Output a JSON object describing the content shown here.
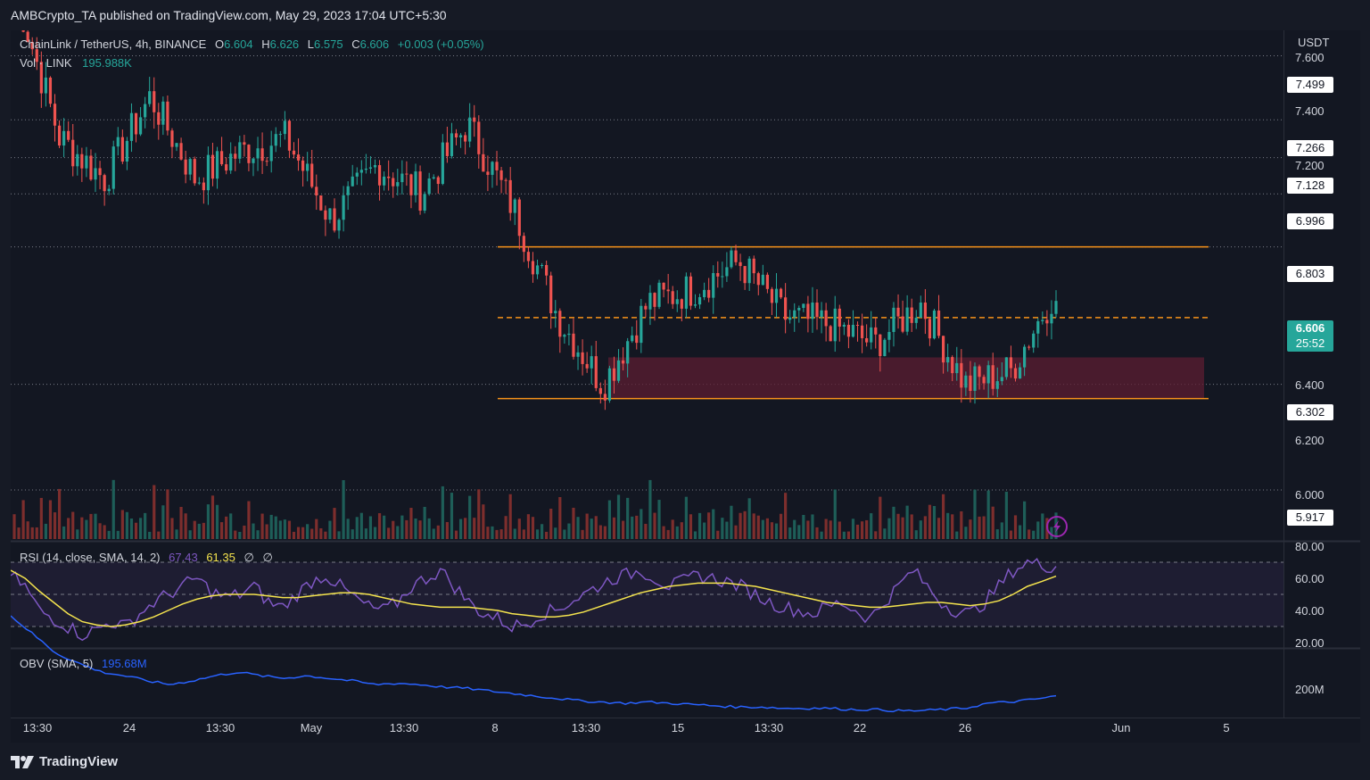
{
  "publisher": "AMBCrypto_TA published on TradingView.com, May 29, 2023 17:04 UTC+5:30",
  "symbol": {
    "name": "ChainLink / TetherUS, 4h, BINANCE",
    "o_label": "O",
    "o": "6.604",
    "h_label": "H",
    "h": "6.626",
    "l_label": "L",
    "l": "6.575",
    "c_label": "C",
    "c": "6.606",
    "change": "+0.003 (+0.05%)"
  },
  "volume": {
    "label": "Vol · LINK",
    "value": "195.988K"
  },
  "rsi": {
    "label": "RSI (14, close, SMA, 14, 2)",
    "value": "67.43",
    "sma": "61.35",
    "extra1": "∅",
    "extra2": "∅"
  },
  "obv": {
    "label": "OBV (SMA, 5)",
    "value": "195.68M"
  },
  "currency": "USDT",
  "current_price": {
    "price": "6.606",
    "countdown": "25:52"
  },
  "brand": "TradingView",
  "colors": {
    "up": "#26a69a",
    "down": "#ef5350",
    "zone": "#f7931a",
    "rsi": "#7e57c2",
    "rsi_sma": "#f5e44e",
    "obv": "#2962ff"
  },
  "chart_data": [
    {
      "type": "candlestick",
      "title": "ChainLink / TetherUS, 4h, BINANCE",
      "ylabel": "USDT",
      "ylim": [
        5.85,
        7.65
      ],
      "y_ticks": [
        "7.600",
        "7.400",
        "7.200",
        "6.400",
        "6.200",
        "6.000"
      ],
      "price_levels": [
        "7.499",
        "7.266",
        "7.128",
        "6.996",
        "6.803",
        "6.302",
        "5.917"
      ],
      "x_ticks": [
        "13:30",
        "24",
        "13:30",
        "May",
        "13:30",
        "8",
        "13:30",
        "15",
        "13:30",
        "22",
        "26",
        "Jun",
        "5"
      ],
      "range_top": 6.803,
      "range_mid": 6.545,
      "range_bottom": 6.25,
      "demand_zone": [
        6.25,
        6.4
      ],
      "anchors": [
        [
          7.75,
          7.5
        ],
        [
          7.2,
          7.25
        ],
        [
          7.05,
          7.0
        ],
        [
          7.35,
          7.45
        ],
        [
          7.05,
          7.0
        ],
        [
          7.15,
          7.25
        ],
        [
          7.2,
          7.05
        ],
        [
          6.9,
          6.95
        ],
        [
          7.1,
          7.2
        ],
        [
          7.0,
          7.0
        ],
        [
          7.25,
          7.15
        ],
        [
          6.95,
          6.9
        ],
        [
          6.55,
          6.5
        ],
        [
          6.3,
          6.35
        ],
        [
          6.6,
          6.55
        ],
        [
          6.65,
          6.7
        ],
        [
          6.75,
          6.8
        ],
        [
          6.55,
          6.55
        ],
        [
          6.52,
          6.5
        ],
        [
          6.45,
          6.55
        ],
        [
          6.6,
          6.55
        ],
        [
          6.3,
          6.28
        ],
        [
          6.35,
          6.4
        ],
        [
          6.65,
          6.61
        ]
      ]
    },
    {
      "type": "bar",
      "title": "Vol · LINK",
      "last_value": "195.988K"
    },
    {
      "type": "line",
      "title": "RSI (14, close, SMA, 14, 2)",
      "ylim": [
        20,
        80
      ],
      "y_ticks": [
        "80.00",
        "60.00",
        "40.00",
        "20.00"
      ],
      "bands": [
        70,
        50,
        30
      ],
      "series": [
        {
          "name": "RSI",
          "last": 67.43,
          "values": [
            62,
            55,
            40,
            35,
            30,
            25,
            28,
            33,
            30,
            38,
            45,
            50,
            55,
            60,
            52,
            48,
            50,
            55,
            45,
            42,
            50,
            58,
            62,
            55,
            48,
            42,
            40,
            45,
            55,
            60,
            65,
            55,
            45,
            38,
            35,
            30,
            32,
            38,
            40,
            45,
            50,
            55,
            60,
            62,
            65,
            60,
            55,
            58,
            62,
            60,
            58,
            55,
            50,
            45,
            42,
            40,
            38,
            42,
            45,
            40,
            35,
            45,
            55,
            65,
            55,
            45,
            40,
            38,
            45,
            55,
            65,
            70,
            68,
            67.43
          ]
        },
        {
          "name": "SMA",
          "last": 61.35,
          "values": [
            65,
            60,
            52,
            45,
            38,
            33,
            31,
            30,
            31,
            33,
            36,
            40,
            44,
            47,
            49,
            50,
            50,
            50,
            49,
            48,
            48,
            49,
            50,
            51,
            51,
            50,
            48,
            46,
            44,
            43,
            42,
            42,
            42,
            41,
            40,
            38,
            37,
            36,
            36,
            37,
            39,
            42,
            45,
            48,
            51,
            53,
            55,
            56,
            57,
            57,
            57,
            56,
            55,
            53,
            51,
            49,
            47,
            45,
            44,
            43,
            42,
            42,
            43,
            44,
            45,
            45,
            44,
            43,
            44,
            46,
            50,
            55,
            58,
            61.35
          ]
        }
      ]
    },
    {
      "type": "line",
      "title": "OBV (SMA, 5)",
      "y_ticks": [
        "200M"
      ],
      "series": [
        {
          "name": "OBV",
          "last": "195.68M",
          "values": [
            260,
            245,
            230,
            222,
            215,
            212,
            208,
            205,
            208,
            212,
            215,
            212,
            210,
            212,
            210,
            208,
            205,
            206,
            205,
            203,
            202,
            200,
            198,
            196,
            194,
            192,
            191,
            190,
            191,
            190,
            189,
            188,
            187,
            187,
            186,
            186,
            186,
            185,
            185,
            184,
            184,
            185,
            186,
            190,
            191,
            193,
            195.68
          ]
        }
      ]
    }
  ]
}
